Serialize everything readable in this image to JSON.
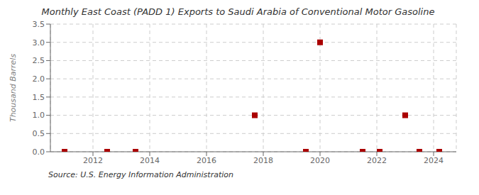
{
  "chart_data": {
    "type": "scatter",
    "title": "Monthly East Coast (PADD 1) Exports to Saudi Arabia of Conventional Motor Gasoline",
    "ylabel": "Thousand Barrels",
    "annotations": [
      "Source: U.S. Energy Information Administration"
    ],
    "x": [
      2011.0,
      2012.5,
      2013.5,
      2017.7,
      2019.5,
      2020.0,
      2021.5,
      2022.1,
      2023.0,
      2023.5,
      2024.2
    ],
    "values": [
      0.0,
      0.0,
      0.0,
      1.0,
      0.0,
      3.0,
      0.0,
      0.0,
      1.0,
      0.0,
      0.0
    ],
    "color": "#aa0000",
    "marker": "square",
    "xlim": [
      2010.5,
      2024.8
    ],
    "ylim": [
      0,
      3.5
    ],
    "xticks": [
      2012,
      2014,
      2016,
      2018,
      2020,
      2022,
      2024
    ],
    "yticks": [
      {
        "value": 0,
        "label": "0.0"
      },
      0.5,
      {
        "value": 1,
        "label": "1.0"
      },
      1.5,
      {
        "value": 2,
        "label": "2.0"
      },
      2.5,
      {
        "value": 3,
        "label": "3.0"
      },
      3.5
    ],
    "grid": true
  }
}
